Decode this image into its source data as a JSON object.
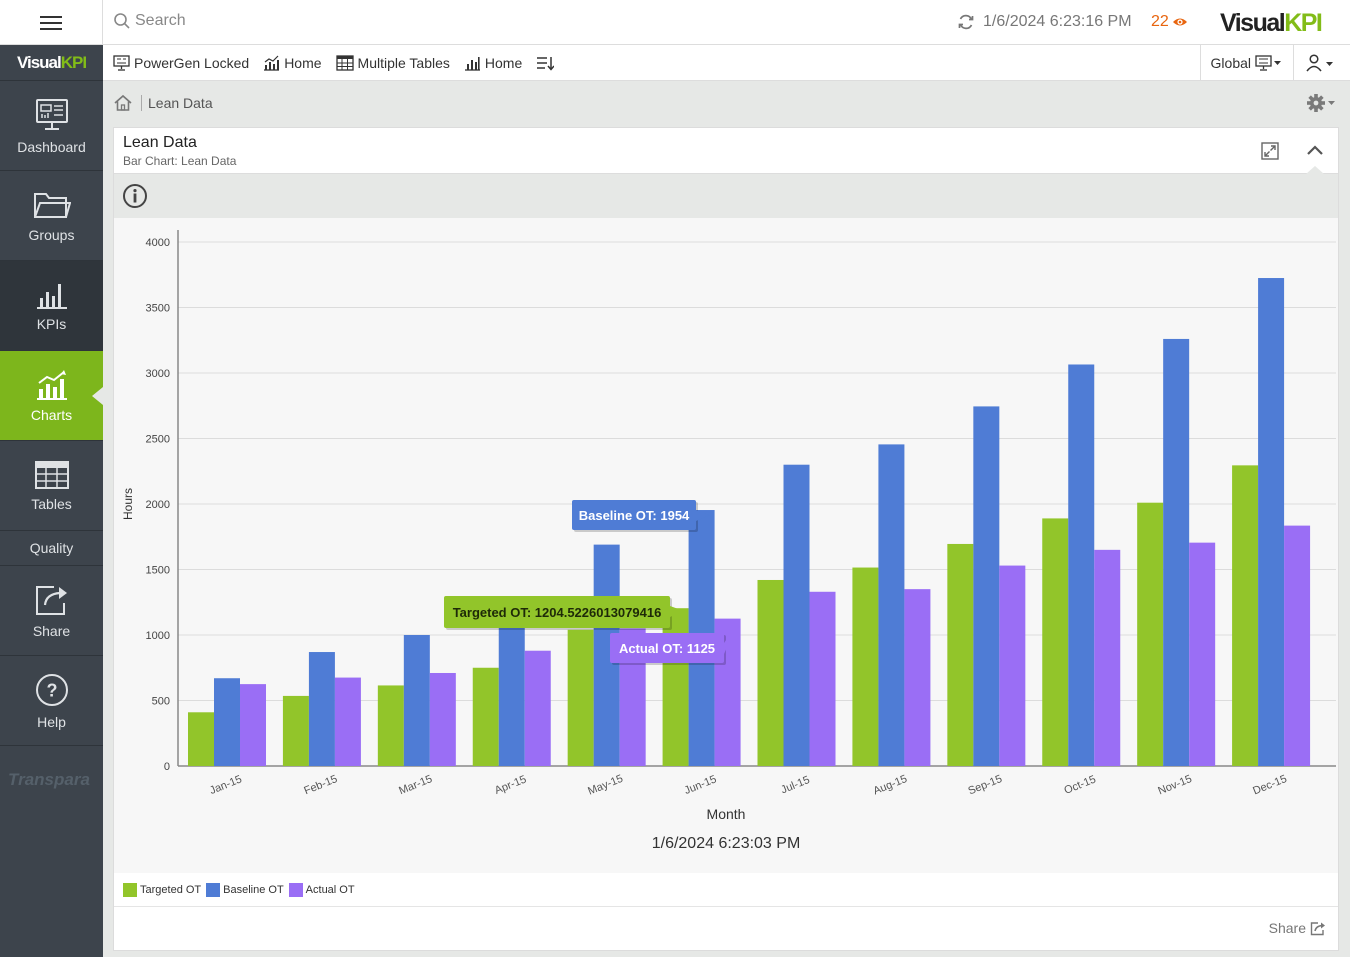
{
  "topbar": {
    "search_placeholder": "Search",
    "refresh_time": "1/6/2024 6:23:16 PM",
    "alert_count": "22",
    "logo_visual": "Visual",
    "logo_kpi": "KPI"
  },
  "sidebar": {
    "logo_visual": "Visual",
    "logo_kpi": "KPI",
    "items": [
      {
        "label": "Dashboard",
        "icon": "dashboard-icon"
      },
      {
        "label": "Groups",
        "icon": "folder-icon"
      },
      {
        "label": "KPIs",
        "icon": "kpi-bars-icon"
      },
      {
        "label": "Charts",
        "icon": "chart-icon"
      },
      {
        "label": "Tables",
        "icon": "table-icon"
      },
      {
        "label": "Quality"
      },
      {
        "label": "Share",
        "icon": "share-icon"
      },
      {
        "label": "Help",
        "icon": "help-icon"
      }
    ],
    "brand": "Transpara"
  },
  "toolbar": {
    "crumbs": [
      {
        "label": "PowerGen Locked",
        "icon": "dashboard-icon"
      },
      {
        "label": "Home",
        "icon": "chart-icon"
      },
      {
        "label": "Multiple Tables",
        "icon": "table-icon"
      },
      {
        "label": "Home",
        "icon": "bar-chart-icon"
      }
    ],
    "global_label": "Global"
  },
  "page": {
    "breadcrumb": "Lean Data"
  },
  "panel": {
    "title": "Lean Data",
    "subtitle": "Bar Chart: Lean Data",
    "share_label": "Share"
  },
  "colors": {
    "targeted": "#92c52a",
    "baseline": "#4f7cd5",
    "actual": "#9a6ef5",
    "accent": "#7db61c"
  },
  "chart_data": {
    "type": "bar",
    "title": "",
    "xlabel": "Month",
    "ylabel": "Hours",
    "timestamp": "1/6/2024 6:23:03 PM",
    "ylim": [
      0,
      4000
    ],
    "yticks": [
      0,
      500,
      1000,
      1500,
      2000,
      2500,
      3000,
      3500,
      4000
    ],
    "grid": true,
    "legend_position": "bottom-left",
    "categories": [
      "Jan-15",
      "Feb-15",
      "Mar-15",
      "Apr-15",
      "May-15",
      "Jun-15",
      "Jul-15",
      "Aug-15",
      "Sep-15",
      "Oct-15",
      "Nov-15",
      "Dec-15"
    ],
    "series": [
      {
        "name": "Targeted OT",
        "values": [
          410,
          535,
          615,
          750,
          1040,
          1204.5226013079416,
          1420,
          1515,
          1695,
          1890,
          2010,
          2295
        ]
      },
      {
        "name": "Baseline OT",
        "values": [
          670,
          870,
          1000,
          1090,
          1690,
          1954,
          2300,
          2455,
          2745,
          3065,
          3260,
          3725
        ]
      },
      {
        "name": "Actual OT",
        "values": [
          625,
          675,
          710,
          880,
          1050,
          1125,
          1330,
          1350,
          1530,
          1650,
          1705,
          1835
        ]
      }
    ],
    "tooltips": [
      {
        "text": "Baseline OT: 1954",
        "series": 1,
        "index": 5
      },
      {
        "text": "Targeted OT: 1204.5226013079416",
        "series": 0,
        "index": 5
      },
      {
        "text": "Actual OT: 1125",
        "series": 2,
        "index": 5
      }
    ]
  }
}
